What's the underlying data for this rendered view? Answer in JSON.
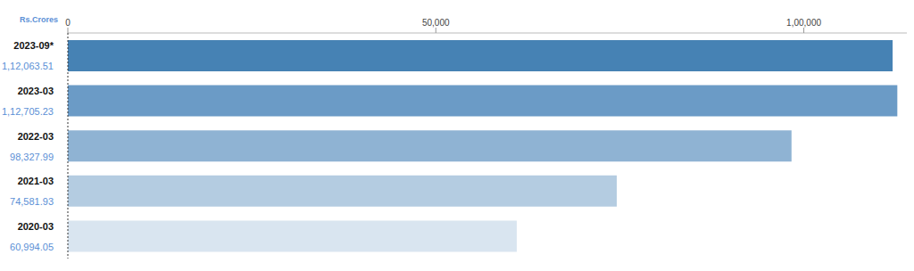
{
  "chart_data": {
    "type": "bar",
    "orientation": "horizontal",
    "xlabel": "Rs.Crores",
    "categories": [
      "2023-09*",
      "2023-03",
      "2022-03",
      "2021-03",
      "2020-03"
    ],
    "values": [
      112063.51,
      112705.23,
      98327.99,
      74581.93,
      60994.05
    ],
    "value_labels": [
      "1,12,063.51",
      "1,12,705.23",
      "98,327.99",
      "74,581.93",
      "60,994.05"
    ],
    "data_labels": true,
    "colors": [
      "#4682b4",
      "#6b9bc6",
      "#8fb3d3",
      "#b4cce1",
      "#d9e5f0"
    ],
    "xlim": [
      0,
      114000
    ],
    "xticks": [
      0,
      {
        "value": 50000,
        "label": "50,000"
      },
      {
        "value": 100000,
        "label": "1,00,000"
      }
    ],
    "grid": false
  }
}
